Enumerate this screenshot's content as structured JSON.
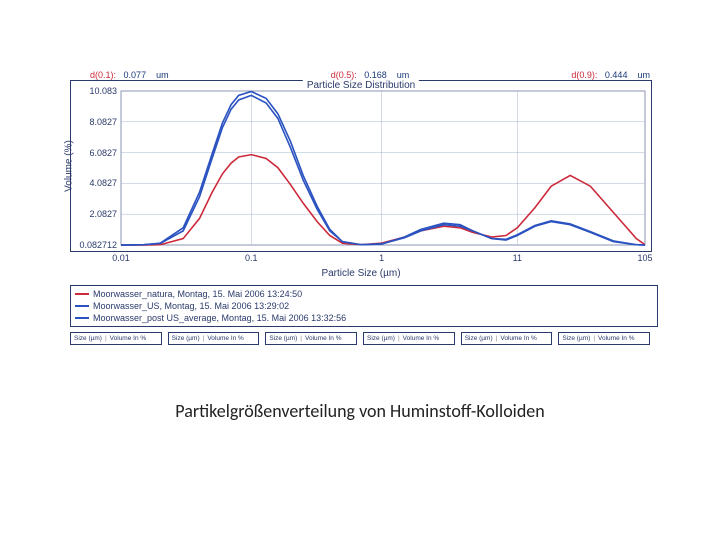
{
  "caption": "Partikelgrößenverteilung von Huminstoff-Kolloiden",
  "dstats": {
    "d01": {
      "label": "d(0.1):",
      "value": "0.077",
      "unit": "um"
    },
    "d05": {
      "label": "d(0.5):",
      "value": "0.168",
      "unit": "um"
    },
    "d09": {
      "label": "d(0.9):",
      "value": "0.444",
      "unit": "um"
    }
  },
  "chart": {
    "type": "line",
    "title": "Particle Size Distribution",
    "xlabel": "Particle Size (µm)",
    "ylabel": "Volume (%)",
    "x_scale": "log",
    "xlim": [
      0.01,
      105
    ],
    "ylim": [
      0.0827,
      10.083
    ],
    "xticks": [
      {
        "pos": 0.01,
        "label": "0.01"
      },
      {
        "pos": 0.1,
        "label": "0.1"
      },
      {
        "pos": 1,
        "label": "1"
      },
      {
        "pos": 11,
        "label": "11"
      },
      {
        "pos": 105,
        "label": "105"
      }
    ],
    "yticks": [
      {
        "pos": 0.0827,
        "label": "0.082712"
      },
      {
        "pos": 2.0827,
        "label": "2.0827"
      },
      {
        "pos": 4.0827,
        "label": "4.0827"
      },
      {
        "pos": 6.0827,
        "label": "6.0827"
      },
      {
        "pos": 8.0827,
        "label": "8.0827"
      },
      {
        "pos": 10.083,
        "label": "10.083"
      }
    ],
    "background_color": "#ffffff",
    "border_color": "#2a3a6a",
    "grid_color": "#a8b4d0",
    "tick_font_size": 9,
    "label_font_size": 10,
    "title_font_size": 10,
    "line_width": 1.6,
    "series": [
      {
        "id": "natura",
        "color": "#cc2a3a",
        "legend": "Moorwasser_natura, Montag, 15. Mai 2006 13:24:50",
        "points": [
          [
            0.01,
            0.08
          ],
          [
            0.015,
            0.08
          ],
          [
            0.02,
            0.1
          ],
          [
            0.03,
            0.5
          ],
          [
            0.04,
            1.8
          ],
          [
            0.05,
            3.5
          ],
          [
            0.06,
            4.7
          ],
          [
            0.07,
            5.4
          ],
          [
            0.08,
            5.8
          ],
          [
            0.1,
            5.95
          ],
          [
            0.13,
            5.7
          ],
          [
            0.16,
            5.1
          ],
          [
            0.2,
            4.0
          ],
          [
            0.25,
            2.8
          ],
          [
            0.32,
            1.6
          ],
          [
            0.4,
            0.7
          ],
          [
            0.5,
            0.2
          ],
          [
            0.7,
            0.1
          ],
          [
            1,
            0.2
          ],
          [
            1.5,
            0.6
          ],
          [
            2,
            1.0
          ],
          [
            3,
            1.3
          ],
          [
            4,
            1.2
          ],
          [
            5,
            0.9
          ],
          [
            7,
            0.6
          ],
          [
            9,
            0.7
          ],
          [
            11,
            1.2
          ],
          [
            15,
            2.5
          ],
          [
            20,
            3.9
          ],
          [
            28,
            4.6
          ],
          [
            40,
            3.9
          ],
          [
            60,
            2.2
          ],
          [
            90,
            0.5
          ],
          [
            105,
            0.1
          ]
        ]
      },
      {
        "id": "us",
        "color": "#2a52c0",
        "legend": "Moorwasser_US, Montag, 15. Mai 2006 13:29:02",
        "points": [
          [
            0.01,
            0.08
          ],
          [
            0.015,
            0.1
          ],
          [
            0.02,
            0.2
          ],
          [
            0.03,
            1.2
          ],
          [
            0.04,
            3.5
          ],
          [
            0.05,
            6.0
          ],
          [
            0.06,
            8.0
          ],
          [
            0.07,
            9.2
          ],
          [
            0.08,
            9.8
          ],
          [
            0.1,
            10.05
          ],
          [
            0.13,
            9.6
          ],
          [
            0.16,
            8.6
          ],
          [
            0.2,
            6.8
          ],
          [
            0.25,
            4.6
          ],
          [
            0.32,
            2.6
          ],
          [
            0.4,
            1.1
          ],
          [
            0.5,
            0.3
          ],
          [
            0.7,
            0.1
          ],
          [
            1,
            0.15
          ],
          [
            1.5,
            0.6
          ],
          [
            2,
            1.1
          ],
          [
            3,
            1.5
          ],
          [
            4,
            1.4
          ],
          [
            5,
            1.0
          ],
          [
            7,
            0.5
          ],
          [
            9,
            0.4
          ],
          [
            11,
            0.7
          ],
          [
            15,
            1.3
          ],
          [
            20,
            1.6
          ],
          [
            28,
            1.4
          ],
          [
            40,
            0.9
          ],
          [
            60,
            0.3
          ],
          [
            90,
            0.1
          ],
          [
            105,
            0.08
          ]
        ]
      },
      {
        "id": "post_us_avg",
        "color": "#2a52c0",
        "legend": "Moorwasser_post US_average, Montag, 15. Mai 2006 13:32:56",
        "points": [
          [
            0.01,
            0.08
          ],
          [
            0.015,
            0.1
          ],
          [
            0.02,
            0.18
          ],
          [
            0.03,
            1.0
          ],
          [
            0.04,
            3.2
          ],
          [
            0.05,
            5.7
          ],
          [
            0.06,
            7.7
          ],
          [
            0.07,
            8.9
          ],
          [
            0.08,
            9.5
          ],
          [
            0.1,
            9.8
          ],
          [
            0.13,
            9.3
          ],
          [
            0.16,
            8.3
          ],
          [
            0.2,
            6.4
          ],
          [
            0.25,
            4.3
          ],
          [
            0.32,
            2.4
          ],
          [
            0.4,
            1.0
          ],
          [
            0.5,
            0.3
          ],
          [
            0.7,
            0.1
          ],
          [
            1,
            0.15
          ],
          [
            1.5,
            0.55
          ],
          [
            2,
            1.0
          ],
          [
            3,
            1.4
          ],
          [
            4,
            1.3
          ],
          [
            5,
            1.0
          ],
          [
            7,
            0.5
          ],
          [
            9,
            0.45
          ],
          [
            11,
            0.75
          ],
          [
            15,
            1.35
          ],
          [
            20,
            1.65
          ],
          [
            28,
            1.45
          ],
          [
            40,
            0.95
          ],
          [
            60,
            0.35
          ],
          [
            90,
            0.1
          ],
          [
            105,
            0.08
          ]
        ]
      }
    ]
  },
  "tabs": {
    "left": "Size (µm)",
    "right": "Volume In %",
    "count": 6
  },
  "colors": {
    "text": "#2a3a6a",
    "red": "#cc2a3a"
  }
}
